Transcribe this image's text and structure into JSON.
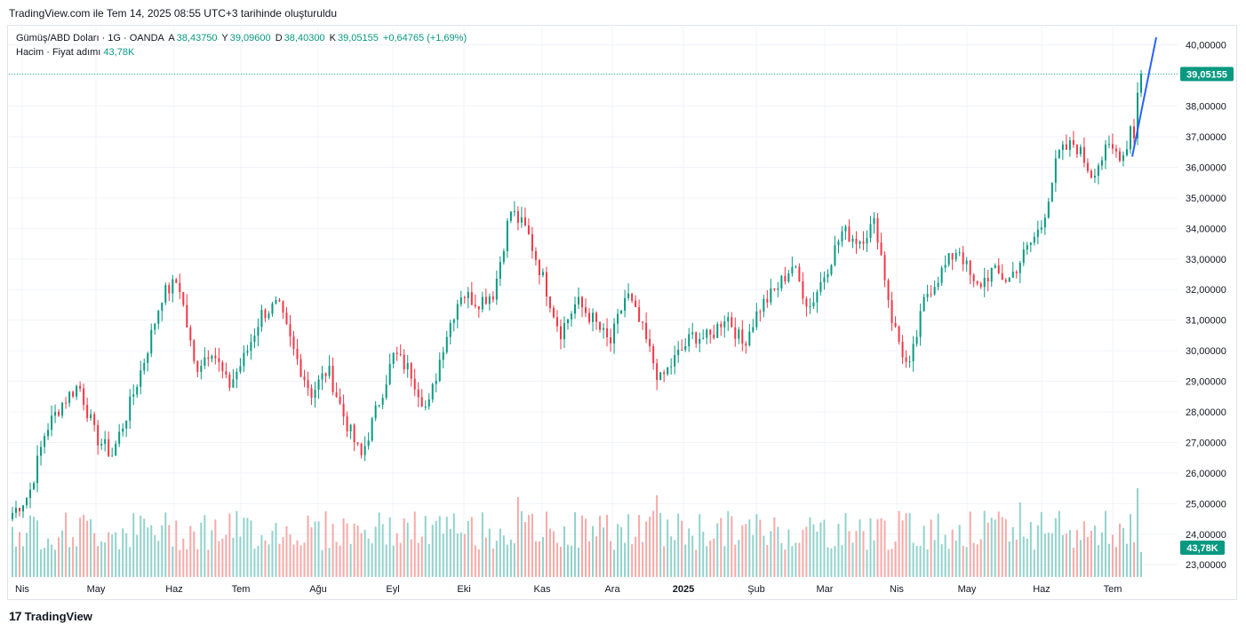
{
  "caption": "TradingView.com ile Tem 14, 2025 08:55 UTC+3 tarihinde oluşturuldu",
  "legend": {
    "symbol": "Gümüş/ABD Doları · 1G · OANDA",
    "open_label": "A",
    "open": "38,43750",
    "high_label": "Y",
    "high": "39,09600",
    "low_label": "D",
    "low": "38,40300",
    "close_label": "K",
    "close": "39,05155",
    "change": "+0,64765 (+1,69%)",
    "volume_label": "Hacim · Fiyat adımı",
    "volume": "43,78K"
  },
  "brand": {
    "logo_text": "17",
    "name": "TradingView"
  },
  "colors": {
    "up": "#089981",
    "down": "#f23645",
    "vol_up": "#92d2cc",
    "vol_down": "#f7a9a7",
    "projection": "#2962ff",
    "grid": "#f0f3fa"
  },
  "chart_data": {
    "type": "candlestick",
    "title": "Gümüş/ABD Doları · 1G · OANDA",
    "ylim": [
      22.6,
      40.6
    ],
    "y_ticks": [
      "23,00000",
      "24,00000",
      "25,00000",
      "26,00000",
      "27,00000",
      "28,00000",
      "29,00000",
      "30,00000",
      "31,00000",
      "32,00000",
      "33,00000",
      "34,00000",
      "35,00000",
      "36,00000",
      "37,00000",
      "38,00000",
      "40,00000"
    ],
    "x_ticks": [
      "Nis",
      "May",
      "Haz",
      "Tem",
      "Ağu",
      "Eyl",
      "Eki",
      "Kas",
      "Ara",
      "2025",
      "Şub",
      "Mar",
      "Nis",
      "May",
      "Haz",
      "Tem"
    ],
    "last_price": "39,05155",
    "last_volume": "43,78K",
    "price_anchors": [
      24.7,
      25.3,
      27.4,
      28.3,
      28.9,
      27.2,
      26.6,
      28.1,
      29.8,
      31.8,
      32.3,
      29.4,
      30.1,
      28.8,
      29.8,
      31.2,
      31.5,
      29.9,
      28.6,
      29.4,
      27.8,
      26.5,
      28.2,
      29.9,
      29.3,
      28.0,
      30.3,
      31.9,
      31.6,
      31.9,
      34.6,
      33.9,
      32.3,
      30.6,
      31.6,
      31.0,
      30.2,
      31.9,
      30.6,
      29.0,
      29.8,
      30.5,
      30.4,
      31.2,
      30.2,
      31.4,
      32.0,
      32.8,
      31.4,
      32.6,
      33.9,
      33.6,
      34.2,
      31.0,
      29.3,
      31.8,
      32.6,
      33.4,
      32.0,
      32.6,
      32.3,
      33.2,
      34.1,
      36.4,
      36.8,
      35.8,
      36.6,
      36.4,
      39.05
    ],
    "volume_range": [
      0,
      140
    ]
  }
}
